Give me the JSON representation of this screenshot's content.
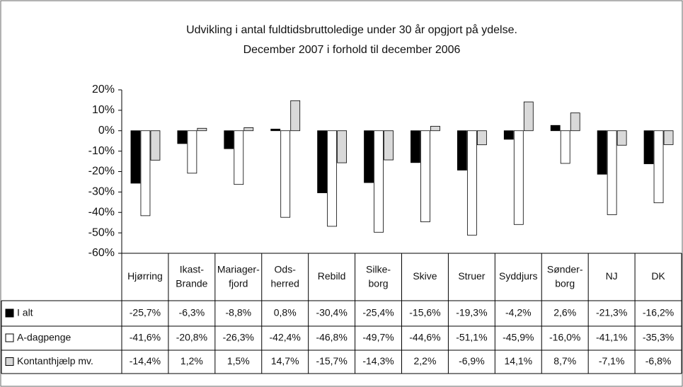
{
  "chart_data": {
    "type": "bar",
    "title": "Udvikling i antal fuldtidsbruttoledige under 30 år opgjort på ydelse.",
    "subtitle": "December 2007 i forhold til december 2006",
    "categories": [
      "Hjørring",
      "Ikast-\nBrande",
      "Mariager-\nfjord",
      "Ods-\nherred",
      "Rebild",
      "Silke-\nborg",
      "Skive",
      "Struer",
      "Syddjurs",
      "Sønder-\nborg",
      "NJ",
      "DK"
    ],
    "series": [
      {
        "name": "I alt",
        "color": "#000000",
        "values": [
          -25.7,
          -6.3,
          -8.8,
          0.8,
          -30.4,
          -25.4,
          -15.6,
          -19.3,
          -4.2,
          2.6,
          -21.3,
          -16.2
        ],
        "value_labels": [
          "-25,7%",
          "-6,3%",
          "-8,8%",
          "0,8%",
          "-30,4%",
          "-25,4%",
          "-15,6%",
          "-19,3%",
          "-4,2%",
          "2,6%",
          "-21,3%",
          "-16,2%"
        ]
      },
      {
        "name": "A-dagpenge",
        "color": "#ffffff",
        "values": [
          -41.6,
          -20.8,
          -26.3,
          -42.4,
          -46.8,
          -49.7,
          -44.6,
          -51.1,
          -45.9,
          -16.0,
          -41.1,
          -35.3
        ],
        "value_labels": [
          "-41,6%",
          "-20,8%",
          "-26,3%",
          "-42,4%",
          "-46,8%",
          "-49,7%",
          "-44,6%",
          "-51,1%",
          "-45,9%",
          "-16,0%",
          "-41,1%",
          "-35,3%"
        ]
      },
      {
        "name": "Kontanthjælp mv.",
        "color": "#d9d9d9",
        "values": [
          -14.4,
          1.2,
          1.5,
          14.7,
          -15.7,
          -14.3,
          2.2,
          -6.9,
          14.1,
          8.7,
          -7.1,
          -6.8
        ],
        "value_labels": [
          "-14,4%",
          "1,2%",
          "1,5%",
          "14,7%",
          "-15,7%",
          "-14,3%",
          "2,2%",
          "-6,9%",
          "14,1%",
          "8,7%",
          "-7,1%",
          "-6,8%"
        ]
      }
    ],
    "ylim": [
      -60,
      20
    ],
    "yticks": [
      {
        "value": 20,
        "label": "20%"
      },
      {
        "value": 10,
        "label": "10%"
      },
      {
        "value": 0,
        "label": "0%"
      },
      {
        "value": -10,
        "label": "-10%"
      },
      {
        "value": -20,
        "label": "-20%"
      },
      {
        "value": -30,
        "label": "-30%"
      },
      {
        "value": -40,
        "label": "-40%"
      },
      {
        "value": -50,
        "label": "-50%"
      },
      {
        "value": -60,
        "label": "-60%"
      }
    ],
    "grid": false
  }
}
